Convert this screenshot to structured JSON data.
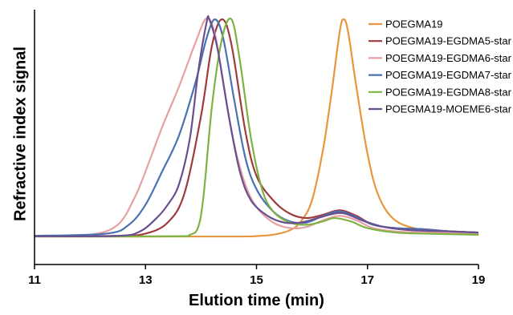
{
  "chart_data": {
    "type": "line",
    "title": "",
    "xlabel": "Elution time (min)",
    "ylabel": "Refractive index signal",
    "xlim": [
      11,
      19
    ],
    "ylim": [
      0,
      1.0
    ],
    "x_ticks": [
      "11",
      "13",
      "15",
      "17",
      "19"
    ],
    "y_ticks_shown": false,
    "grid": false,
    "legend_position": "top-right",
    "series": [
      {
        "name": "POEGMA19",
        "color": "#e8963f",
        "points": [
          [
            11,
            0.007
          ],
          [
            14.5,
            0.007
          ],
          [
            15.0,
            0.009
          ],
          [
            15.3,
            0.015
          ],
          [
            15.6,
            0.035
          ],
          [
            15.8,
            0.075
          ],
          [
            16.0,
            0.17
          ],
          [
            16.2,
            0.4
          ],
          [
            16.35,
            0.65
          ],
          [
            16.5,
            0.93
          ],
          [
            16.57,
            0.985
          ],
          [
            16.65,
            0.93
          ],
          [
            16.8,
            0.68
          ],
          [
            17.0,
            0.38
          ],
          [
            17.2,
            0.19
          ],
          [
            17.5,
            0.08
          ],
          [
            18.0,
            0.035
          ],
          [
            18.5,
            0.02
          ],
          [
            19,
            0.015
          ]
        ]
      },
      {
        "name": "POEGMA19-EGDMA5-star",
        "color": "#a03a3d",
        "points": [
          [
            11,
            0.008
          ],
          [
            12.5,
            0.01
          ],
          [
            13.0,
            0.02
          ],
          [
            13.4,
            0.07
          ],
          [
            13.7,
            0.2
          ],
          [
            14.0,
            0.55
          ],
          [
            14.2,
            0.87
          ],
          [
            14.38,
            0.985
          ],
          [
            14.55,
            0.87
          ],
          [
            14.8,
            0.48
          ],
          [
            15.0,
            0.28
          ],
          [
            15.3,
            0.17
          ],
          [
            15.6,
            0.11
          ],
          [
            15.9,
            0.09
          ],
          [
            16.2,
            0.105
          ],
          [
            16.5,
            0.125
          ],
          [
            16.8,
            0.1
          ],
          [
            17.1,
            0.06
          ],
          [
            17.5,
            0.045
          ],
          [
            18.0,
            0.04
          ],
          [
            18.5,
            0.03
          ],
          [
            19,
            0.025
          ]
        ]
      },
      {
        "name": "POEGMA19-EGDMA6-star",
        "color": "#e6a0a3",
        "points": [
          [
            11,
            0.008
          ],
          [
            12.0,
            0.015
          ],
          [
            12.5,
            0.06
          ],
          [
            12.8,
            0.18
          ],
          [
            13.0,
            0.3
          ],
          [
            13.3,
            0.5
          ],
          [
            13.6,
            0.68
          ],
          [
            13.9,
            0.88
          ],
          [
            14.1,
            0.99
          ],
          [
            14.25,
            0.92
          ],
          [
            14.4,
            0.7
          ],
          [
            14.6,
            0.42
          ],
          [
            14.8,
            0.24
          ],
          [
            15.0,
            0.14
          ],
          [
            15.3,
            0.07
          ],
          [
            15.6,
            0.045
          ],
          [
            15.9,
            0.05
          ],
          [
            16.2,
            0.08
          ],
          [
            16.5,
            0.1
          ],
          [
            16.8,
            0.08
          ],
          [
            17.1,
            0.045
          ],
          [
            17.5,
            0.03
          ],
          [
            18.0,
            0.025
          ],
          [
            19,
            0.02
          ]
        ]
      },
      {
        "name": "POEGMA19-EGDMA7-star",
        "color": "#4a72b0",
        "points": [
          [
            11,
            0.01
          ],
          [
            12.3,
            0.02
          ],
          [
            12.7,
            0.06
          ],
          [
            13.0,
            0.15
          ],
          [
            13.3,
            0.3
          ],
          [
            13.6,
            0.46
          ],
          [
            13.9,
            0.7
          ],
          [
            14.1,
            0.9
          ],
          [
            14.25,
            0.985
          ],
          [
            14.4,
            0.9
          ],
          [
            14.6,
            0.62
          ],
          [
            14.8,
            0.36
          ],
          [
            15.0,
            0.22
          ],
          [
            15.3,
            0.12
          ],
          [
            15.6,
            0.075
          ],
          [
            15.9,
            0.07
          ],
          [
            16.2,
            0.1
          ],
          [
            16.5,
            0.12
          ],
          [
            16.8,
            0.095
          ],
          [
            17.1,
            0.06
          ],
          [
            17.5,
            0.045
          ],
          [
            18.0,
            0.04
          ],
          [
            18.5,
            0.03
          ],
          [
            19,
            0.025
          ]
        ]
      },
      {
        "name": "POEGMA19-EGDMA8-star",
        "color": "#7fb244",
        "points": [
          [
            11,
            0.007
          ],
          [
            13.5,
            0.008
          ],
          [
            13.8,
            0.015
          ],
          [
            13.95,
            0.05
          ],
          [
            14.05,
            0.2
          ],
          [
            14.2,
            0.6
          ],
          [
            14.38,
            0.9
          ],
          [
            14.55,
            0.985
          ],
          [
            14.7,
            0.8
          ],
          [
            14.9,
            0.45
          ],
          [
            15.1,
            0.22
          ],
          [
            15.3,
            0.12
          ],
          [
            15.6,
            0.07
          ],
          [
            15.9,
            0.06
          ],
          [
            16.2,
            0.075
          ],
          [
            16.4,
            0.09
          ],
          [
            16.7,
            0.075
          ],
          [
            17.0,
            0.045
          ],
          [
            17.5,
            0.025
          ],
          [
            18.0,
            0.02
          ],
          [
            19,
            0.015
          ]
        ]
      },
      {
        "name": "POEGMA19-MOEME6-star",
        "color": "#6a4f8f",
        "points": [
          [
            11,
            0.008
          ],
          [
            12.5,
            0.01
          ],
          [
            12.9,
            0.03
          ],
          [
            13.2,
            0.09
          ],
          [
            13.4,
            0.15
          ],
          [
            13.6,
            0.24
          ],
          [
            13.8,
            0.45
          ],
          [
            13.95,
            0.75
          ],
          [
            14.1,
            0.97
          ],
          [
            14.15,
            0.985
          ],
          [
            14.3,
            0.85
          ],
          [
            14.5,
            0.55
          ],
          [
            14.7,
            0.3
          ],
          [
            14.9,
            0.17
          ],
          [
            15.2,
            0.1
          ],
          [
            15.5,
            0.07
          ],
          [
            15.8,
            0.07
          ],
          [
            16.1,
            0.09
          ],
          [
            16.4,
            0.11
          ],
          [
            16.6,
            0.11
          ],
          [
            16.9,
            0.08
          ],
          [
            17.3,
            0.05
          ],
          [
            17.8,
            0.035
          ],
          [
            18.5,
            0.03
          ],
          [
            19,
            0.025
          ]
        ]
      }
    ]
  }
}
